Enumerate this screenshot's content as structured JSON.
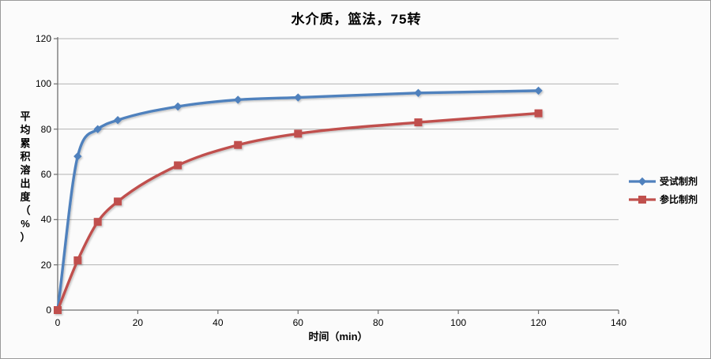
{
  "title": "水介质，篮法，75转",
  "chart_data": {
    "type": "line",
    "title": "水介质，篮法，75转",
    "xlabel": "时间（min）",
    "ylabel": "平均累积溶出度（%）",
    "x": [
      0,
      5,
      10,
      15,
      30,
      45,
      60,
      90,
      120
    ],
    "series": [
      {
        "name": "受试制剂",
        "color": "#4F81BD",
        "marker": "diamond",
        "values": [
          0,
          68,
          80,
          84,
          90,
          93,
          94,
          96,
          97
        ]
      },
      {
        "name": "参比制剂",
        "color": "#C0504D",
        "marker": "square",
        "values": [
          0,
          22,
          39,
          48,
          64,
          73,
          78,
          83,
          87
        ]
      }
    ],
    "xlim": [
      0,
      140
    ],
    "ylim": [
      0,
      120
    ],
    "x_ticks": [
      0,
      20,
      40,
      60,
      80,
      100,
      120,
      140
    ],
    "y_ticks": [
      0,
      20,
      40,
      60,
      80,
      100,
      120
    ],
    "grid": true,
    "smooth_lines": true,
    "legend_position": "right",
    "colors": {
      "gridline": "#b3b3b3",
      "axis": "#6f6f6f",
      "background": "#fbfbfb",
      "text": "#000000"
    }
  }
}
